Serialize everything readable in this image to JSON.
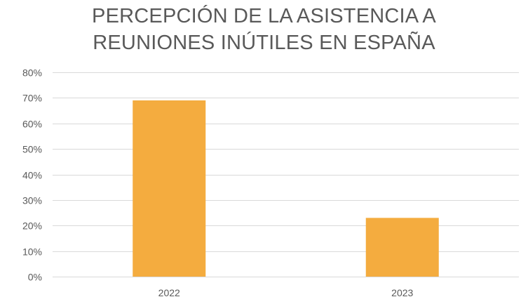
{
  "chart_data": {
    "type": "bar",
    "title_lines": [
      "PERCEPCIÓN DE LA ASISTENCIA A",
      "REUNIONES INÚTILES EN ESPAÑA"
    ],
    "categories": [
      "2022",
      "2023"
    ],
    "values": [
      69,
      23
    ],
    "value_unit": "%",
    "ylim": [
      0,
      80
    ],
    "yticks": [
      0,
      10,
      20,
      30,
      40,
      50,
      60,
      70,
      80
    ],
    "ytick_labels": [
      "0%",
      "10%",
      "20%",
      "30%",
      "40%",
      "50%",
      "60%",
      "70%",
      "80%"
    ],
    "xlabel": "",
    "ylabel": "",
    "grid": true,
    "legend": "none",
    "colors": {
      "bar": "#F4AC3F",
      "grid": "#D9D9D9",
      "text": "#595959"
    }
  }
}
